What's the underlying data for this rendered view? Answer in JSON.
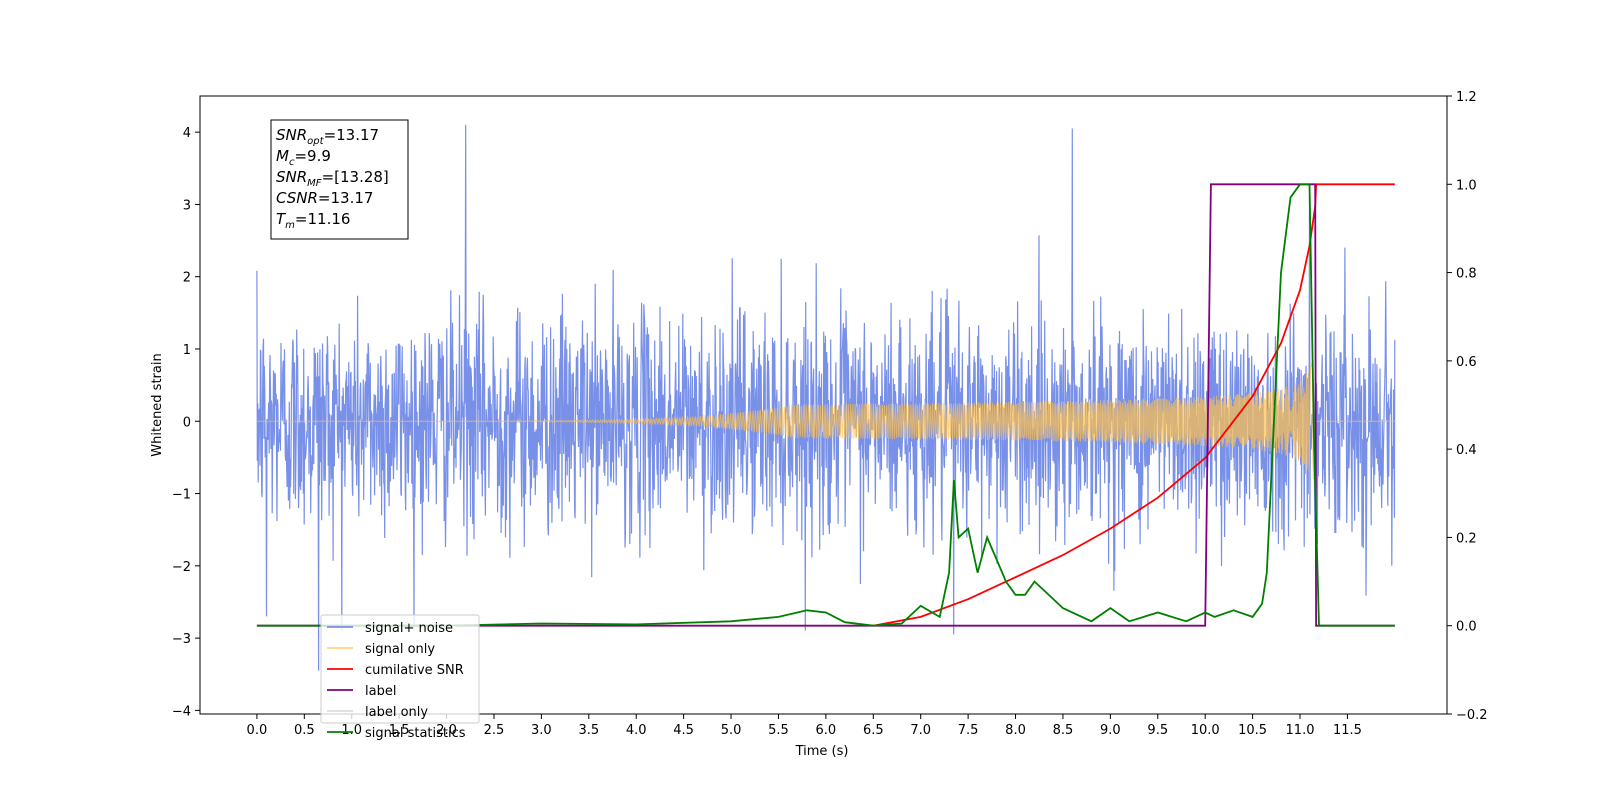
{
  "chart_data": {
    "type": "line",
    "title": "",
    "xlabel": "Time (s)",
    "ylabel": "Whitened strain",
    "xlim": [
      -0.6,
      12.55
    ],
    "ylim": [
      -4.05,
      4.5
    ],
    "y2lim": [
      -0.2,
      1.2
    ],
    "x_ticks": [
      "0.0",
      "0.5",
      "1.0",
      "1.5",
      "2.0",
      "2.5",
      "3.0",
      "3.5",
      "4.0",
      "4.5",
      "5.0",
      "5.5",
      "6.0",
      "6.5",
      "7.0",
      "7.5",
      "8.0",
      "8.5",
      "9.0",
      "9.5",
      "10.0",
      "10.5",
      "11.0",
      "11.5"
    ],
    "y_ticks": [
      "4",
      "3",
      "2",
      "1",
      "0",
      "−1",
      "−2",
      "−3",
      "−4"
    ],
    "y2_ticks": [
      "1.2",
      "1.0",
      "0.8",
      "0.6",
      "0.4",
      "0.2",
      "0.0",
      "−0.2"
    ],
    "grid": false,
    "legend_placement": "lower-left",
    "annotation": {
      "lines": [
        {
          "sym": "SNR",
          "sub": "opt",
          "value": "=13.17"
        },
        {
          "sym": "M",
          "sub": "c",
          "value": "=9.9"
        },
        {
          "sym": "SNR",
          "sub": "MF",
          "value": "=[13.28]"
        },
        {
          "sym": "CSNR",
          "sub": "",
          "value": "=13.17"
        },
        {
          "sym": "T",
          "sub": "m",
          "value": "=11.16"
        }
      ]
    },
    "series": [
      {
        "name": "signal+ noise",
        "color": "#7890e8",
        "axis": "left",
        "kind": "noise",
        "t_start": 0.0,
        "t_end": 12.0,
        "sigma": 0.75,
        "peaks": [
          [
            2.2,
            4.1
          ],
          [
            8.6,
            4.05
          ],
          [
            11.1,
            3.1
          ],
          [
            0.65,
            -3.45
          ],
          [
            7.35,
            -2.95
          ],
          [
            0.1,
            -2.7
          ]
        ]
      },
      {
        "name": "signal only",
        "color": "#ffc04c",
        "axis": "left",
        "kind": "chirp",
        "t_start": 0.0,
        "t_merge": 11.16,
        "t_end": 12.0,
        "amp_at_merge": 0.95
      },
      {
        "name": "cumilative SNR",
        "color": "#ff0000",
        "axis": "right",
        "x": [
          6.5,
          7.0,
          7.5,
          8.0,
          8.5,
          9.0,
          9.5,
          10.0,
          10.5,
          10.8,
          11.0,
          11.1,
          11.16,
          11.17,
          12.0
        ],
        "y": [
          0.0,
          0.02,
          0.06,
          0.11,
          0.16,
          0.22,
          0.29,
          0.38,
          0.52,
          0.64,
          0.76,
          0.86,
          0.95,
          1.0,
          1.0
        ]
      },
      {
        "name": "label",
        "color": "#800080",
        "axis": "right",
        "x": [
          0.0,
          10.0,
          10.06,
          11.1,
          11.16,
          11.17,
          12.0
        ],
        "y": [
          0.0,
          0.0,
          1.0,
          1.0,
          1.0,
          0.0,
          0.0
        ]
      },
      {
        "name": "label only",
        "color": "#dddddd",
        "axis": "right",
        "hidden": true,
        "x": [],
        "y": []
      },
      {
        "name": "signal statistics",
        "color": "#008000",
        "axis": "right",
        "x": [
          0.0,
          2.0,
          3.0,
          4.0,
          5.0,
          5.5,
          5.8,
          6.0,
          6.2,
          6.5,
          6.8,
          7.0,
          7.2,
          7.3,
          7.35,
          7.4,
          7.5,
          7.6,
          7.7,
          7.8,
          7.9,
          8.0,
          8.1,
          8.2,
          8.3,
          8.5,
          8.8,
          9.0,
          9.2,
          9.5,
          9.8,
          10.0,
          10.1,
          10.3,
          10.5,
          10.6,
          10.65,
          10.7,
          10.8,
          10.9,
          11.0,
          11.1,
          11.15,
          11.2,
          12.0
        ],
        "y": [
          0.0,
          0.0,
          0.005,
          0.003,
          0.01,
          0.02,
          0.035,
          0.03,
          0.008,
          0.0,
          0.005,
          0.045,
          0.02,
          0.12,
          0.33,
          0.2,
          0.22,
          0.12,
          0.2,
          0.15,
          0.1,
          0.07,
          0.07,
          0.1,
          0.08,
          0.04,
          0.01,
          0.04,
          0.01,
          0.03,
          0.01,
          0.03,
          0.02,
          0.035,
          0.02,
          0.05,
          0.12,
          0.35,
          0.8,
          0.97,
          1.0,
          1.0,
          0.4,
          0.0,
          0.0
        ]
      }
    ]
  }
}
